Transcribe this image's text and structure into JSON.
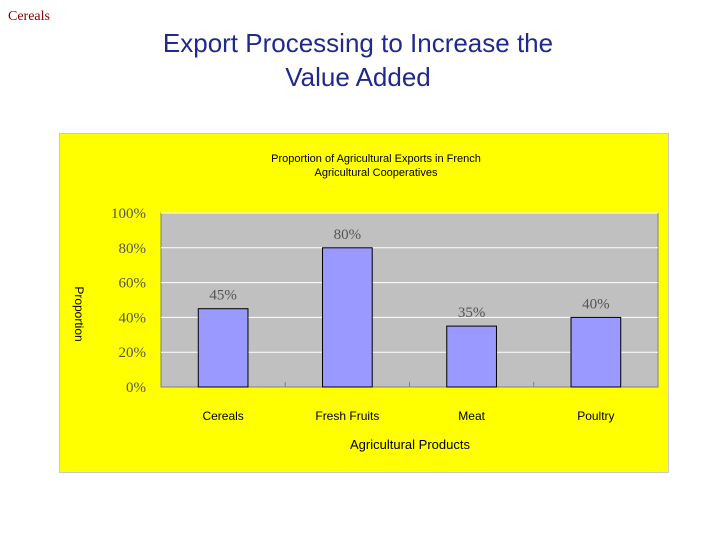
{
  "slide": {
    "corner_label": "Cereals",
    "title_line1": "Export Processing to Increase the",
    "title_line2": "Value Added"
  },
  "colors": {
    "panel_bg": "#ffff00",
    "plot_bg": "#c0c0c0",
    "bar_fill": "#9999ff",
    "bar_stroke": "#000000",
    "title_color": "#1f2a8c",
    "corner_color": "#8b0000"
  },
  "chart_data": {
    "type": "bar",
    "title_line1": "Proportion of Agricultural Exports in French",
    "title_line2": "Agricultural Cooperatives",
    "xlabel": "Agricultural Products",
    "ylabel": "Proportion",
    "categories": [
      "Cereals",
      "Fresh Fruits",
      "Meat",
      "Poultry"
    ],
    "values": [
      45,
      80,
      35,
      40
    ],
    "data_labels": [
      "45%",
      "80%",
      "35%",
      "40%"
    ],
    "ylim": [
      0,
      100
    ],
    "yticks": [
      0,
      20,
      40,
      60,
      80,
      100
    ],
    "ytick_labels": [
      "0%",
      "20%",
      "40%",
      "60%",
      "80%",
      "100%"
    ],
    "grid": true,
    "legend": false
  }
}
